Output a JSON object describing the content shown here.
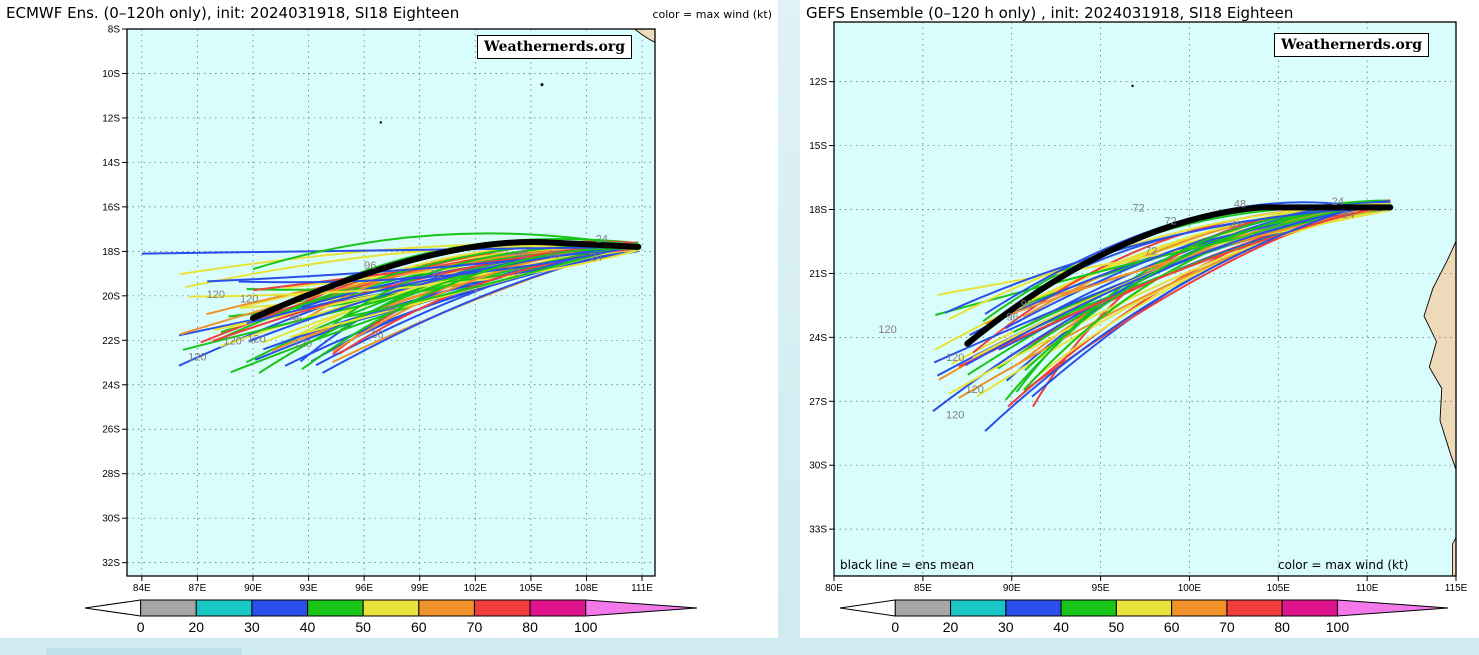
{
  "maps": [
    {
      "id": "ecmwf",
      "title": "ECMWF Ens. (0–120h only), init: 2024031918, SI18 Eighteen",
      "subtitle": "color = max wind (kt)",
      "brand": "Weathernerds.org",
      "lat_labels": [
        "8S",
        "10S",
        "12S",
        "14S",
        "16S",
        "18S",
        "20S",
        "22S",
        "24S",
        "26S",
        "28S",
        "30S",
        "32S"
      ],
      "lat_values": [
        -8,
        -10,
        -12,
        -14,
        -16,
        -18,
        -20,
        -22,
        -24,
        -26,
        -28,
        -30,
        -32
      ],
      "lon_labels": [
        "84E",
        "87E",
        "90E",
        "93E",
        "96E",
        "99E",
        "102E",
        "105E",
        "108E",
        "111E"
      ],
      "lon_values": [
        84,
        87,
        90,
        93,
        96,
        99,
        102,
        105,
        108,
        111
      ],
      "lon_range": [
        83.2,
        111.7
      ],
      "lat_range": [
        -8,
        -32.6
      ],
      "hour_labels": [
        {
          "text": "120",
          "lon": 86.5,
          "lat": -22.9
        },
        {
          "text": "120",
          "lon": 88.4,
          "lat": -22.2
        },
        {
          "text": "120",
          "lon": 87.5,
          "lat": -20.1
        },
        {
          "text": "120",
          "lon": 89.3,
          "lat": -20.3
        },
        {
          "text": "120",
          "lon": 89.7,
          "lat": -22.1
        },
        {
          "text": "120",
          "lon": 92.2,
          "lat": -22.3
        },
        {
          "text": "96",
          "lon": 92.0,
          "lat": -21.2
        },
        {
          "text": "96",
          "lon": 97.1,
          "lat": -20.8
        },
        {
          "text": "96",
          "lon": 96.4,
          "lat": -21.9
        },
        {
          "text": "96",
          "lon": 96.0,
          "lat": -18.8
        },
        {
          "text": "72",
          "lon": 101.6,
          "lat": -19.8
        },
        {
          "text": "72",
          "lon": 103.8,
          "lat": -19.1
        },
        {
          "text": "72",
          "lon": 99.6,
          "lat": -19.2
        },
        {
          "text": "48",
          "lon": 105.9,
          "lat": -18.3
        },
        {
          "text": "48",
          "lon": 104.2,
          "lat": -18.3
        },
        {
          "text": "24",
          "lon": 108.2,
          "lat": -18.4
        },
        {
          "text": "24",
          "lon": 108.5,
          "lat": -17.6
        }
      ]
    },
    {
      "id": "gefs",
      "title": "GEFS Ensemble (0–120 h only) , init: 2024031918, SI18 Eighteen",
      "subtitle": "",
      "brand": "Weathernerds.org",
      "inner_left": "black line = ens mean",
      "inner_right": "color = max wind (kt)",
      "lat_labels": [
        "12S",
        "15S",
        "18S",
        "21S",
        "24S",
        "27S",
        "30S",
        "33S"
      ],
      "lat_values": [
        -12,
        -15,
        -18,
        -21,
        -24,
        -27,
        -30,
        -33
      ],
      "lon_labels": [
        "80E",
        "85E",
        "90E",
        "95E",
        "100E",
        "105E",
        "110E",
        "115E"
      ],
      "lon_values": [
        80,
        85,
        90,
        95,
        100,
        105,
        110,
        115
      ],
      "lon_range": [
        80,
        115
      ],
      "lat_range": [
        -9.2,
        -35.2
      ],
      "hour_labels": [
        {
          "text": "120",
          "lon": 82.5,
          "lat": -23.8
        },
        {
          "text": "120",
          "lon": 86.3,
          "lat": -25.1
        },
        {
          "text": "120",
          "lon": 86.3,
          "lat": -27.8
        },
        {
          "text": "120",
          "lon": 87.4,
          "lat": -26.6
        },
        {
          "text": "96",
          "lon": 89.7,
          "lat": -23.2
        },
        {
          "text": "96",
          "lon": 90.5,
          "lat": -22.6
        },
        {
          "text": "72",
          "lon": 96.8,
          "lat": -18.1
        },
        {
          "text": "72",
          "lon": 97.5,
          "lat": -20.1
        },
        {
          "text": "72",
          "lon": 98.6,
          "lat": -18.7
        },
        {
          "text": "48",
          "lon": 102.3,
          "lat": -18.9
        },
        {
          "text": "48",
          "lon": 102.5,
          "lat": -17.9
        },
        {
          "text": "24",
          "lon": 108.6,
          "lat": -18.4
        },
        {
          "text": "24",
          "lon": 108.0,
          "lat": -17.8
        }
      ]
    }
  ],
  "colorbar": {
    "labels": [
      "0",
      "20",
      "30",
      "40",
      "50",
      "60",
      "70",
      "80",
      "100"
    ],
    "colors": [
      "#ffffff",
      "#a6a6a6",
      "#19c7c7",
      "#2a4fe8",
      "#18c418",
      "#e8e33a",
      "#f0922a",
      "#f03e3e",
      "#e0158e",
      "#f27ae8"
    ]
  },
  "map_colors": {
    "ocean": "#d9fcfc",
    "land": "#eed9b9",
    "grid": "#666666"
  }
}
